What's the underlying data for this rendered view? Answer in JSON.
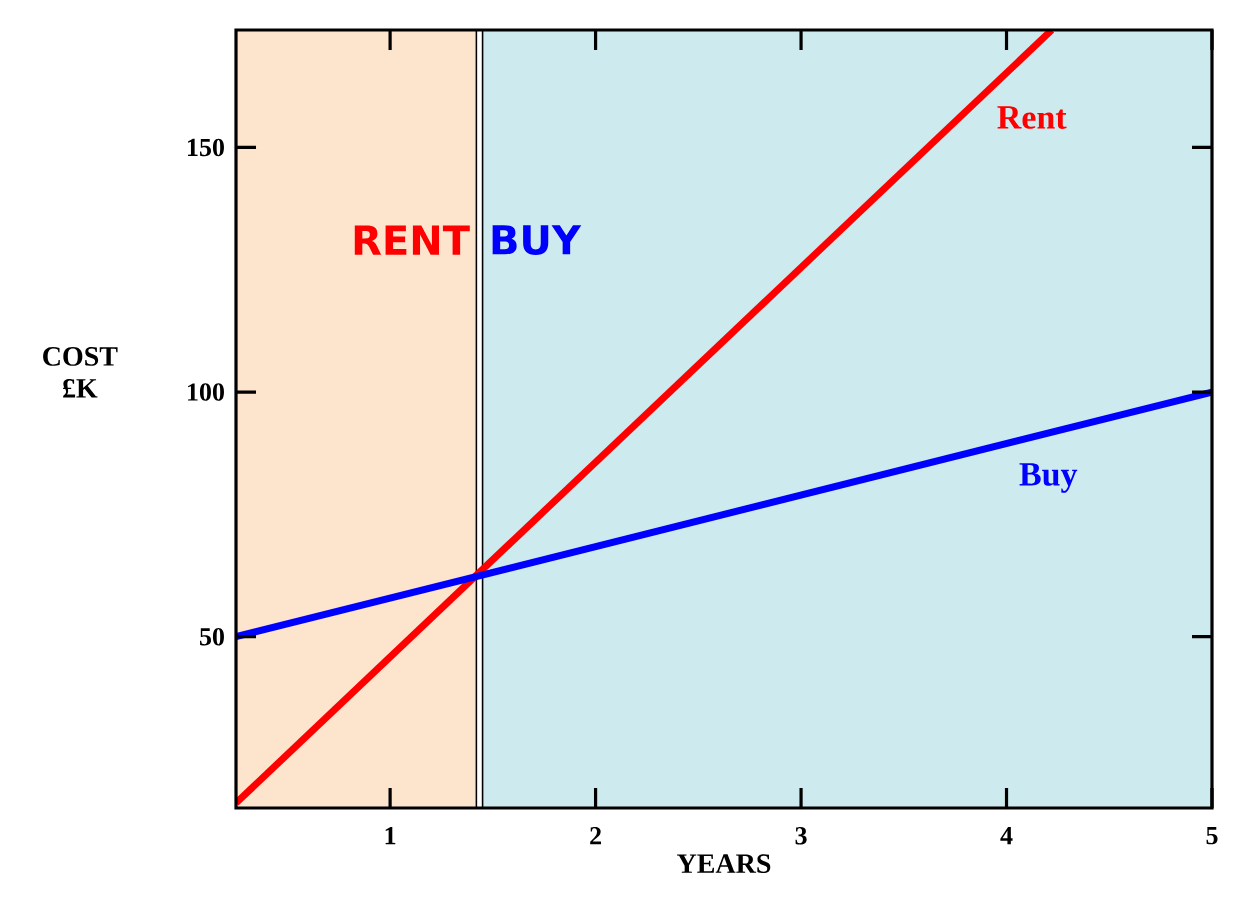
{
  "chart_data": {
    "type": "line",
    "xlabel": "YEARS",
    "ylabel": "COST £K",
    "xlim": [
      0.25,
      5
    ],
    "xticks": [
      1,
      2,
      3,
      4,
      5
    ],
    "ylim": [
      15,
      174
    ],
    "yticks": [
      50,
      100,
      150
    ],
    "bands": [
      {
        "axis": "x",
        "from": 0.25,
        "to": 1.42,
        "label": "RENT",
        "color": "#fde4cc"
      },
      {
        "axis": "x",
        "from": 1.45,
        "to": 5,
        "label": "BUY",
        "color": "#cdebef"
      }
    ],
    "series": [
      {
        "name": "Rent",
        "color": "#ff0000",
        "x": [
          0.25,
          4.22
        ],
        "values": [
          16,
          174
        ]
      },
      {
        "name": "Buy",
        "color": "#0000ff",
        "x": [
          0.25,
          5
        ],
        "values": [
          50,
          100
        ]
      }
    ]
  }
}
